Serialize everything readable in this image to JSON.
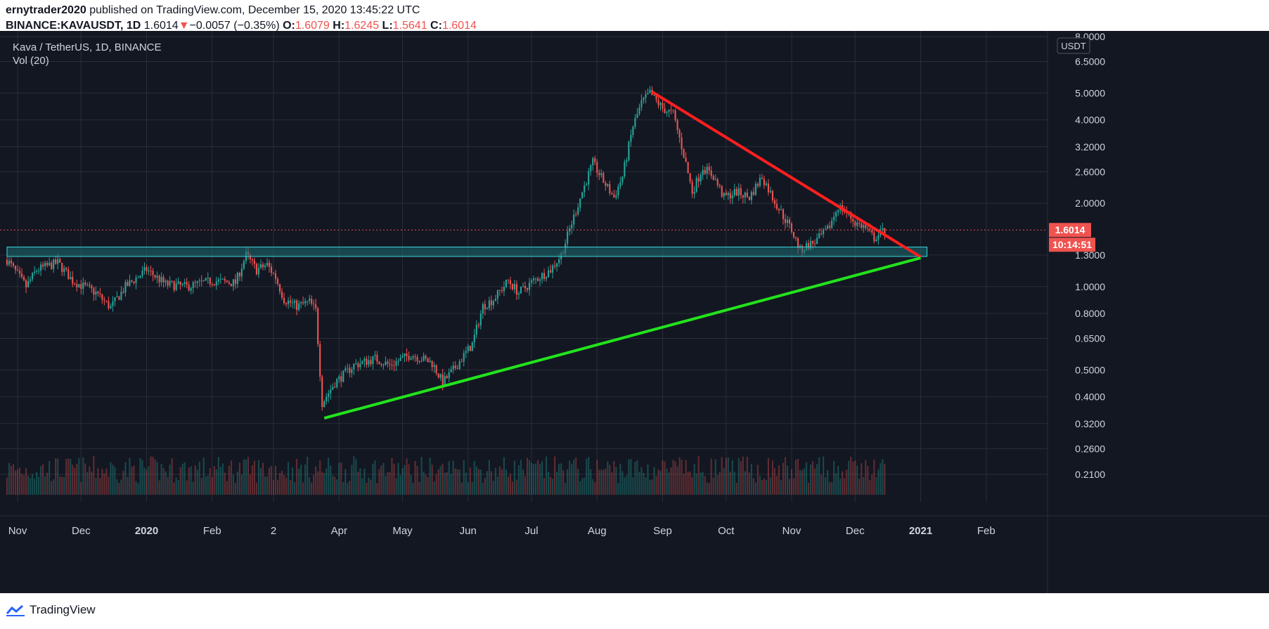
{
  "header": {
    "author": "ernytrader2020",
    "published": "published on TradingView.com, December 15, 2020 13:45:22 UTC",
    "symbol": "BINANCE:KAVAUSDT, 1D",
    "last": "1.6014",
    "change_arrow": "▼",
    "change": "−0.0057 (−0.35%)",
    "open_label": "O:",
    "open": "1.6079",
    "high_label": "H:",
    "high": "1.6245",
    "low_label": "L:",
    "low": "1.5641",
    "close_label": "C:",
    "close": "1.6014"
  },
  "footer": {
    "brand": "TradingView"
  },
  "colors": {
    "background": "#131722",
    "grid": "#2a2e39",
    "up": "#26a69a",
    "down": "#ef5350",
    "resistance_line": "#ff1f1f",
    "support_line": "#22e31c",
    "zone_fill": "#1b6e73",
    "zone_border": "#3ad7d9"
  },
  "chart_data": {
    "type": "candlestick",
    "title": "Kava / TetherUS, 1D, BINANCE",
    "indicator": "Vol (20)",
    "y_scale": "log",
    "currency": "USDT",
    "ylim": [
      0.19,
      8.0
    ],
    "y_ticks": [
      "8.0000",
      "6.5000",
      "5.0000",
      "4.0000",
      "3.2000",
      "2.6000",
      "2.0000",
      "1.3000",
      "1.0000",
      "0.8000",
      "0.6500",
      "0.5000",
      "0.4000",
      "0.3200",
      "0.2600",
      "0.2100"
    ],
    "y_tick_values": [
      8.0,
      6.5,
      5.0,
      4.0,
      3.2,
      2.6,
      2.0,
      1.3,
      1.0,
      0.8,
      0.65,
      0.5,
      0.4,
      0.32,
      0.26,
      0.21
    ],
    "x_ticks": [
      "Nov",
      "Dec",
      "2020",
      "Feb",
      "2",
      "Apr",
      "May",
      "Jun",
      "Jul",
      "Aug",
      "Sep",
      "Oct",
      "Nov",
      "Dec",
      "2021",
      "Feb"
    ],
    "x_tick_dates": [
      "2019-11-01",
      "2019-12-01",
      "2020-01-01",
      "2020-02-01",
      "2020-03-01",
      "2020-04-01",
      "2020-05-01",
      "2020-06-01",
      "2020-07-01",
      "2020-08-01",
      "2020-09-01",
      "2020-10-01",
      "2020-11-01",
      "2020-12-01",
      "2021-01-01",
      "2021-02-01"
    ],
    "bold_x_ticks": [
      "2020",
      "2021"
    ],
    "last_price_label": "1.6014",
    "countdown_label": "10:14:51",
    "price_path": [
      [
        "2019-10-27",
        1.25
      ],
      [
        "2019-11-05",
        1.0
      ],
      [
        "2019-11-10",
        1.15
      ],
      [
        "2019-11-20",
        1.22
      ],
      [
        "2019-11-27",
        1.05
      ],
      [
        "2019-12-08",
        0.95
      ],
      [
        "2019-12-15",
        0.84
      ],
      [
        "2019-12-22",
        1.0
      ],
      [
        "2020-01-01",
        1.15
      ],
      [
        "2020-01-10",
        1.02
      ],
      [
        "2020-01-20",
        1.0
      ],
      [
        "2020-02-01",
        1.05
      ],
      [
        "2020-02-12",
        1.03
      ],
      [
        "2020-02-17",
        1.3
      ],
      [
        "2020-02-22",
        1.15
      ],
      [
        "2020-02-27",
        1.2
      ],
      [
        "2020-03-02",
        1.08
      ],
      [
        "2020-03-06",
        0.9
      ],
      [
        "2020-03-12",
        0.85
      ],
      [
        "2020-03-18",
        0.88
      ],
      [
        "2020-03-21",
        0.82
      ],
      [
        "2020-03-24",
        0.38
      ],
      [
        "2020-03-30",
        0.45
      ],
      [
        "2020-04-08",
        0.52
      ],
      [
        "2020-04-18",
        0.55
      ],
      [
        "2020-04-25",
        0.52
      ],
      [
        "2020-05-05",
        0.57
      ],
      [
        "2020-05-15",
        0.53
      ],
      [
        "2020-05-20",
        0.45
      ],
      [
        "2020-05-25",
        0.5
      ],
      [
        "2020-06-03",
        0.62
      ],
      [
        "2020-06-08",
        0.85
      ],
      [
        "2020-06-13",
        0.9
      ],
      [
        "2020-06-20",
        1.05
      ],
      [
        "2020-06-25",
        0.95
      ],
      [
        "2020-07-02",
        1.05
      ],
      [
        "2020-07-10",
        1.15
      ],
      [
        "2020-07-15",
        1.3
      ],
      [
        "2020-07-20",
        1.7
      ],
      [
        "2020-07-25",
        2.2
      ],
      [
        "2020-07-30",
        2.8
      ],
      [
        "2020-08-04",
        2.4
      ],
      [
        "2020-08-09",
        2.1
      ],
      [
        "2020-08-13",
        2.5
      ],
      [
        "2020-08-18",
        3.8
      ],
      [
        "2020-08-22",
        4.6
      ],
      [
        "2020-08-26",
        5.0
      ],
      [
        "2020-09-01",
        4.4
      ],
      [
        "2020-09-06",
        4.2
      ],
      [
        "2020-09-11",
        3.0
      ],
      [
        "2020-09-15",
        2.2
      ],
      [
        "2020-09-20",
        2.7
      ],
      [
        "2020-09-25",
        2.5
      ],
      [
        "2020-09-30",
        2.1
      ],
      [
        "2020-10-06",
        2.2
      ],
      [
        "2020-10-12",
        2.1
      ],
      [
        "2020-10-18",
        2.5
      ],
      [
        "2020-10-23",
        2.1
      ],
      [
        "2020-10-28",
        1.8
      ],
      [
        "2020-11-01",
        1.6
      ],
      [
        "2020-11-05",
        1.35
      ],
      [
        "2020-11-08",
        1.4
      ],
      [
        "2020-11-12",
        1.45
      ],
      [
        "2020-11-18",
        1.6
      ],
      [
        "2020-11-23",
        1.95
      ],
      [
        "2020-11-27",
        1.85
      ],
      [
        "2020-12-01",
        1.7
      ],
      [
        "2020-12-05",
        1.65
      ],
      [
        "2020-12-10",
        1.5
      ],
      [
        "2020-12-15",
        1.6014
      ]
    ],
    "annotations": {
      "resistance_line": {
        "from": [
          "2020-08-27",
          5.05
        ],
        "to": [
          "2021-01-01",
          1.28
        ]
      },
      "support_line": {
        "from": [
          "2020-03-25",
          0.335
        ],
        "to": [
          "2021-01-01",
          1.27
        ]
      },
      "support_zone": {
        "x_from": "2019-10-27",
        "x_to": "2021-01-04",
        "y_low": 1.285,
        "y_high": 1.39
      }
    }
  }
}
